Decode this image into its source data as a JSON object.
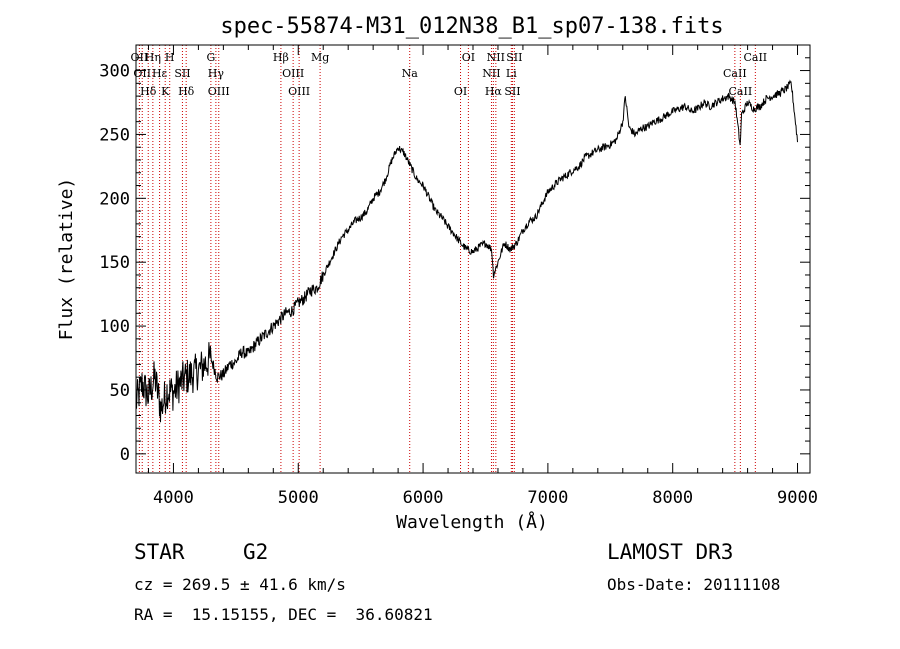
{
  "chart_data": {
    "type": "line",
    "title": "spec-55874-M31_012N38_B1_sp07-138.fits",
    "xlabel": "Wavelength (Å)",
    "ylabel": "Flux (relative)",
    "xlim": [
      3700,
      9100
    ],
    "ylim": [
      -15,
      320
    ],
    "xticks": [
      4000,
      5000,
      6000,
      7000,
      8000,
      9000
    ],
    "xtick_labels": [
      "4000",
      "5000",
      "6000",
      "7000",
      "8000",
      "9000"
    ],
    "yticks": [
      0,
      50,
      100,
      150,
      200,
      250,
      300
    ],
    "ytick_labels": [
      "0",
      "50",
      "100",
      "150",
      "200",
      "250",
      "300"
    ],
    "series": [
      {
        "name": "flux",
        "x": [
          3700,
          3750,
          3800,
          3850,
          3900,
          3950,
          4000,
          4050,
          4100,
          4150,
          4200,
          4250,
          4300,
          4350,
          4400,
          4450,
          4500,
          4550,
          4600,
          4650,
          4700,
          4750,
          4800,
          4850,
          4900,
          4950,
          5000,
          5050,
          5100,
          5150,
          5200,
          5250,
          5300,
          5350,
          5400,
          5450,
          5500,
          5550,
          5600,
          5650,
          5700,
          5750,
          5800,
          5850,
          5900,
          5950,
          6000,
          6050,
          6100,
          6150,
          6200,
          6250,
          6300,
          6350,
          6400,
          6450,
          6500,
          6550,
          6563,
          6600,
          6650,
          6700,
          6750,
          6800,
          6850,
          6900,
          6950,
          7000,
          7050,
          7100,
          7150,
          7200,
          7250,
          7300,
          7350,
          7400,
          7450,
          7500,
          7550,
          7600,
          7620,
          7650,
          7700,
          7750,
          7800,
          7850,
          7900,
          7950,
          8000,
          8050,
          8100,
          8150,
          8200,
          8250,
          8300,
          8350,
          8400,
          8450,
          8500,
          8542,
          8550,
          8600,
          8650,
          8700,
          8750,
          8800,
          8850,
          8900,
          8950,
          9000
        ],
        "y": [
          40,
          55,
          45,
          60,
          35,
          50,
          48,
          55,
          60,
          62,
          65,
          70,
          75,
          60,
          62,
          70,
          72,
          80,
          78,
          85,
          90,
          95,
          100,
          105,
          110,
          112,
          118,
          122,
          128,
          130,
          140,
          150,
          160,
          170,
          175,
          182,
          185,
          190,
          200,
          205,
          215,
          230,
          240,
          235,
          225,
          215,
          210,
          200,
          190,
          185,
          178,
          172,
          165,
          160,
          158,
          162,
          165,
          160,
          140,
          150,
          165,
          160,
          165,
          175,
          182,
          185,
          195,
          205,
          210,
          215,
          218,
          222,
          225,
          232,
          235,
          238,
          240,
          242,
          246,
          260,
          280,
          255,
          250,
          255,
          256,
          260,
          262,
          265,
          268,
          270,
          272,
          268,
          270,
          275,
          272,
          275,
          278,
          280,
          275,
          240,
          265,
          275,
          270,
          272,
          278,
          280,
          282,
          285,
          290,
          245
        ]
      }
    ],
    "lines": [
      {
        "wl": 3727,
        "label": "OII"
      },
      {
        "wl": 3750,
        "label": "OII"
      },
      {
        "wl": 3798,
        "label": "Hδ"
      },
      {
        "wl": 3835,
        "label": "Hη"
      },
      {
        "wl": 3889,
        "label": "Hε"
      },
      {
        "wl": 3934,
        "label": "K"
      },
      {
        "wl": 3970,
        "label": "H"
      },
      {
        "wl": 4072,
        "label": "SII"
      },
      {
        "wl": 4102,
        "label": "Hδ"
      },
      {
        "wl": 4300,
        "label": "G"
      },
      {
        "wl": 4340,
        "label": "Hγ"
      },
      {
        "wl": 4363,
        "label": "OIII"
      },
      {
        "wl": 4861,
        "label": "Hβ"
      },
      {
        "wl": 4959,
        "label": "OIII"
      },
      {
        "wl": 5007,
        "label": "OIII"
      },
      {
        "wl": 5175,
        "label": "Mg"
      },
      {
        "wl": 5893,
        "label": "Na"
      },
      {
        "wl": 6300,
        "label": "OI"
      },
      {
        "wl": 6363,
        "label": "OI"
      },
      {
        "wl": 6548,
        "label": "NII"
      },
      {
        "wl": 6563,
        "label": "Hα"
      },
      {
        "wl": 6583,
        "label": "NII"
      },
      {
        "wl": 6707,
        "label": "Li"
      },
      {
        "wl": 6716,
        "label": "SII"
      },
      {
        "wl": 6731,
        "label": "SII"
      },
      {
        "wl": 8498,
        "label": "CaII"
      },
      {
        "wl": 8542,
        "label": "CaII"
      },
      {
        "wl": 8662,
        "label": "CaII"
      }
    ]
  },
  "info": {
    "class": "STAR",
    "subclass": "G2",
    "survey": "LAMOST DR3",
    "cz": "cz = 269.5 ± 41.6 km/s",
    "obsdate": "Obs-Date: 20111108",
    "radec": "RA =  15.15155, DEC =  36.60821"
  }
}
